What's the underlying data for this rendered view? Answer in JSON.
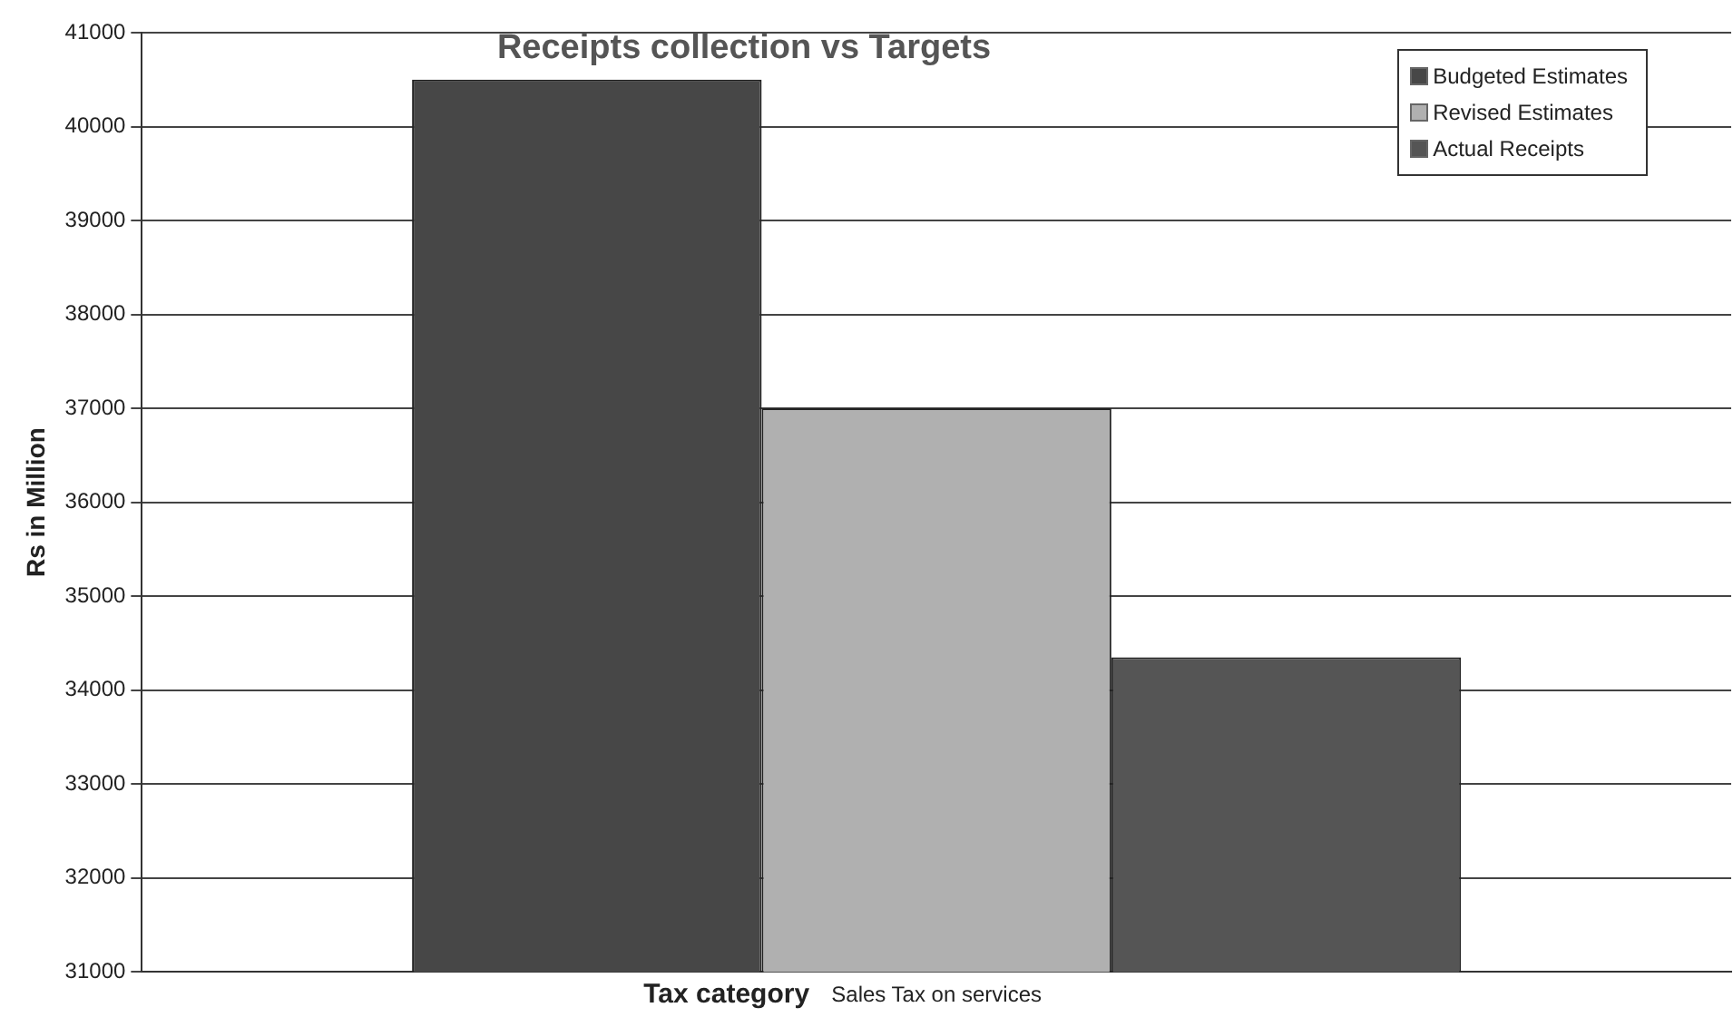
{
  "chart_data": {
    "type": "bar",
    "title": "Receipts collection vs Targets",
    "xlabel": "Tax category",
    "ylabel": "Rs in Million",
    "categories": [
      "Sales Tax on services"
    ],
    "series": [
      {
        "name": "Budgeted Estimates",
        "color": "#474747",
        "values": [
          40500
        ]
      },
      {
        "name": "Revised Estimates",
        "color": "#b0b0b0",
        "values": [
          37000
        ]
      },
      {
        "name": "Actual Receipts",
        "color": "#555555",
        "values": [
          34350
        ]
      }
    ],
    "ylim": [
      31000,
      41000
    ],
    "yticks": [
      31000,
      32000,
      33000,
      34000,
      35000,
      36000,
      37000,
      38000,
      39000,
      40000,
      41000
    ],
    "grid": "y",
    "legend": "top right"
  }
}
